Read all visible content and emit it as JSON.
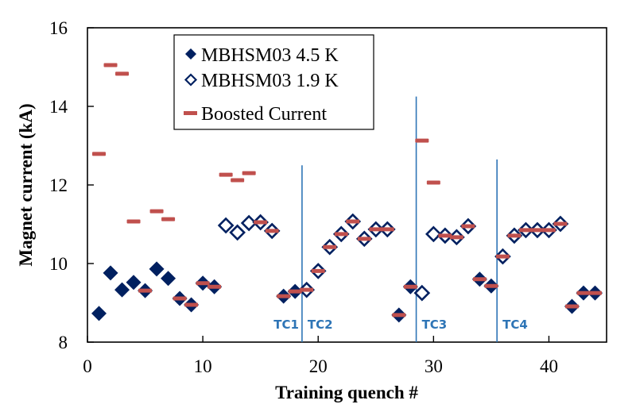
{
  "chart_data": {
    "type": "scatter",
    "title": "",
    "xlabel": "Training quench #",
    "ylabel": "Magnet current (kA)",
    "xlim": [
      0,
      45
    ],
    "ylim": [
      8,
      16
    ],
    "xticks": [
      0,
      10,
      20,
      30,
      40
    ],
    "yticks": [
      8,
      10,
      12,
      14,
      16
    ],
    "grid": false,
    "legend_position": "top-left",
    "series": [
      {
        "name": "MBHSM03 4.5 K",
        "marker": "filled-diamond",
        "color": "#002060",
        "points": [
          [
            1,
            8.73
          ],
          [
            2,
            9.76
          ],
          [
            3,
            9.33
          ],
          [
            4,
            9.52
          ],
          [
            5,
            9.31
          ],
          [
            6,
            9.86
          ],
          [
            7,
            9.62
          ],
          [
            8,
            9.11
          ],
          [
            9,
            8.95
          ],
          [
            10,
            9.5
          ],
          [
            11,
            9.41
          ],
          [
            17,
            9.17
          ],
          [
            18,
            9.29
          ],
          [
            27,
            8.69
          ],
          [
            28,
            9.41
          ],
          [
            34,
            9.6
          ],
          [
            35,
            9.43
          ],
          [
            42,
            8.91
          ],
          [
            43,
            9.25
          ],
          [
            44,
            9.25
          ]
        ]
      },
      {
        "name": "MBHSM03 1.9 K",
        "marker": "open-diamond",
        "color": "#002060",
        "points": [
          [
            12,
            10.97
          ],
          [
            13,
            10.79
          ],
          [
            14,
            11.03
          ],
          [
            15,
            11.05
          ],
          [
            16,
            10.83
          ],
          [
            19,
            9.33
          ],
          [
            20,
            9.81
          ],
          [
            21,
            10.42
          ],
          [
            22,
            10.75
          ],
          [
            23,
            11.07
          ],
          [
            24,
            10.63
          ],
          [
            25,
            10.87
          ],
          [
            26,
            10.87
          ],
          [
            29,
            9.25
          ],
          [
            30,
            10.75
          ],
          [
            31,
            10.71
          ],
          [
            32,
            10.67
          ],
          [
            33,
            10.95
          ],
          [
            36,
            10.18
          ],
          [
            37,
            10.71
          ],
          [
            38,
            10.85
          ],
          [
            39,
            10.85
          ],
          [
            40,
            10.85
          ],
          [
            41,
            11.01
          ]
        ]
      },
      {
        "name": "Boosted Current",
        "marker": "dash",
        "color": "#c0504d",
        "points": [
          [
            1,
            12.79
          ],
          [
            2,
            15.05
          ],
          [
            3,
            14.83
          ],
          [
            4,
            11.07
          ],
          [
            5,
            9.31
          ],
          [
            6,
            11.33
          ],
          [
            7,
            11.13
          ],
          [
            8,
            9.11
          ],
          [
            9,
            8.95
          ],
          [
            10,
            9.5
          ],
          [
            11,
            9.41
          ],
          [
            12,
            12.26
          ],
          [
            13,
            12.12
          ],
          [
            14,
            12.3
          ],
          [
            15,
            11.05
          ],
          [
            16,
            10.83
          ],
          [
            17,
            9.17
          ],
          [
            18,
            9.29
          ],
          [
            19,
            9.33
          ],
          [
            20,
            9.81
          ],
          [
            21,
            10.42
          ],
          [
            22,
            10.75
          ],
          [
            23,
            11.07
          ],
          [
            24,
            10.63
          ],
          [
            25,
            10.87
          ],
          [
            26,
            10.87
          ],
          [
            27,
            8.69
          ],
          [
            28,
            9.41
          ],
          [
            29,
            13.13
          ],
          [
            30,
            12.06
          ],
          [
            31,
            10.71
          ],
          [
            32,
            10.67
          ],
          [
            33,
            10.95
          ],
          [
            34,
            9.6
          ],
          [
            35,
            9.43
          ],
          [
            36,
            10.18
          ],
          [
            37,
            10.71
          ],
          [
            38,
            10.85
          ],
          [
            39,
            10.85
          ],
          [
            40,
            10.85
          ],
          [
            41,
            11.01
          ],
          [
            42,
            8.91
          ],
          [
            43,
            9.25
          ],
          [
            44,
            9.25
          ]
        ]
      }
    ],
    "annotations": {
      "vertical_lines": [
        {
          "x": 18.6,
          "y_top": 12.5,
          "color": "#2e75b6",
          "labels": [
            {
              "text": "TC1",
              "side": "left"
            },
            {
              "text": "TC2",
              "side": "right"
            }
          ]
        },
        {
          "x": 28.5,
          "y_top": 14.25,
          "color": "#2e75b6",
          "labels": [
            {
              "text": "TC3",
              "side": "right"
            }
          ]
        },
        {
          "x": 35.5,
          "y_top": 12.65,
          "color": "#2e75b6",
          "labels": [
            {
              "text": "TC4",
              "side": "right"
            }
          ]
        }
      ]
    }
  }
}
